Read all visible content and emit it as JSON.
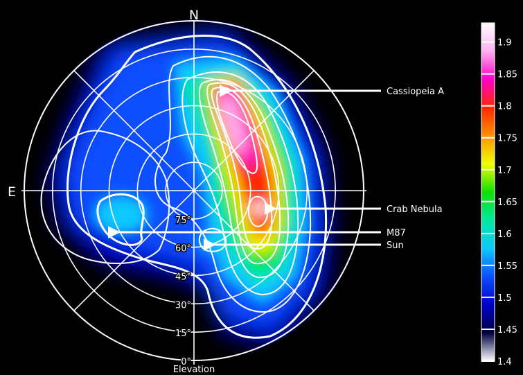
{
  "chart_data": {
    "type": "heatmap",
    "projection": "polar-sky-map",
    "compass": {
      "north": "N",
      "east": "E"
    },
    "elevation_axis": {
      "label": "Elevation",
      "ticks": [
        "0°",
        "15°",
        "30°",
        "45°",
        "60°",
        "75°"
      ]
    },
    "colorbar": {
      "ticks": [
        "1.4",
        "1.45",
        "1.5",
        "1.55",
        "1.6",
        "1.65",
        "1.7",
        "1.75",
        "1.8",
        "1.85",
        "1.9"
      ],
      "min": 1.4,
      "max": 1.93,
      "colors": [
        "#ffffff",
        "#000040",
        "#0000c8",
        "#0a50ff",
        "#10c8ff",
        "#00e8a0",
        "#10e000",
        "#f0ff00",
        "#ff9000",
        "#ff2800",
        "#ff00c8",
        "#ffb0f0",
        "#ffffff"
      ]
    },
    "annotations": [
      {
        "label": "Cassiopeia A",
        "value_level": 1.9
      },
      {
        "label": "Crab Nebula",
        "value_level": 1.83
      },
      {
        "label": "M87",
        "value_level": 1.5
      },
      {
        "label": "Sun",
        "value_level": 1.57
      }
    ],
    "contour_levels": [
      1.45,
      1.5,
      1.55,
      1.6,
      1.65,
      1.7,
      1.75,
      1.8,
      1.85
    ],
    "grid": true
  }
}
